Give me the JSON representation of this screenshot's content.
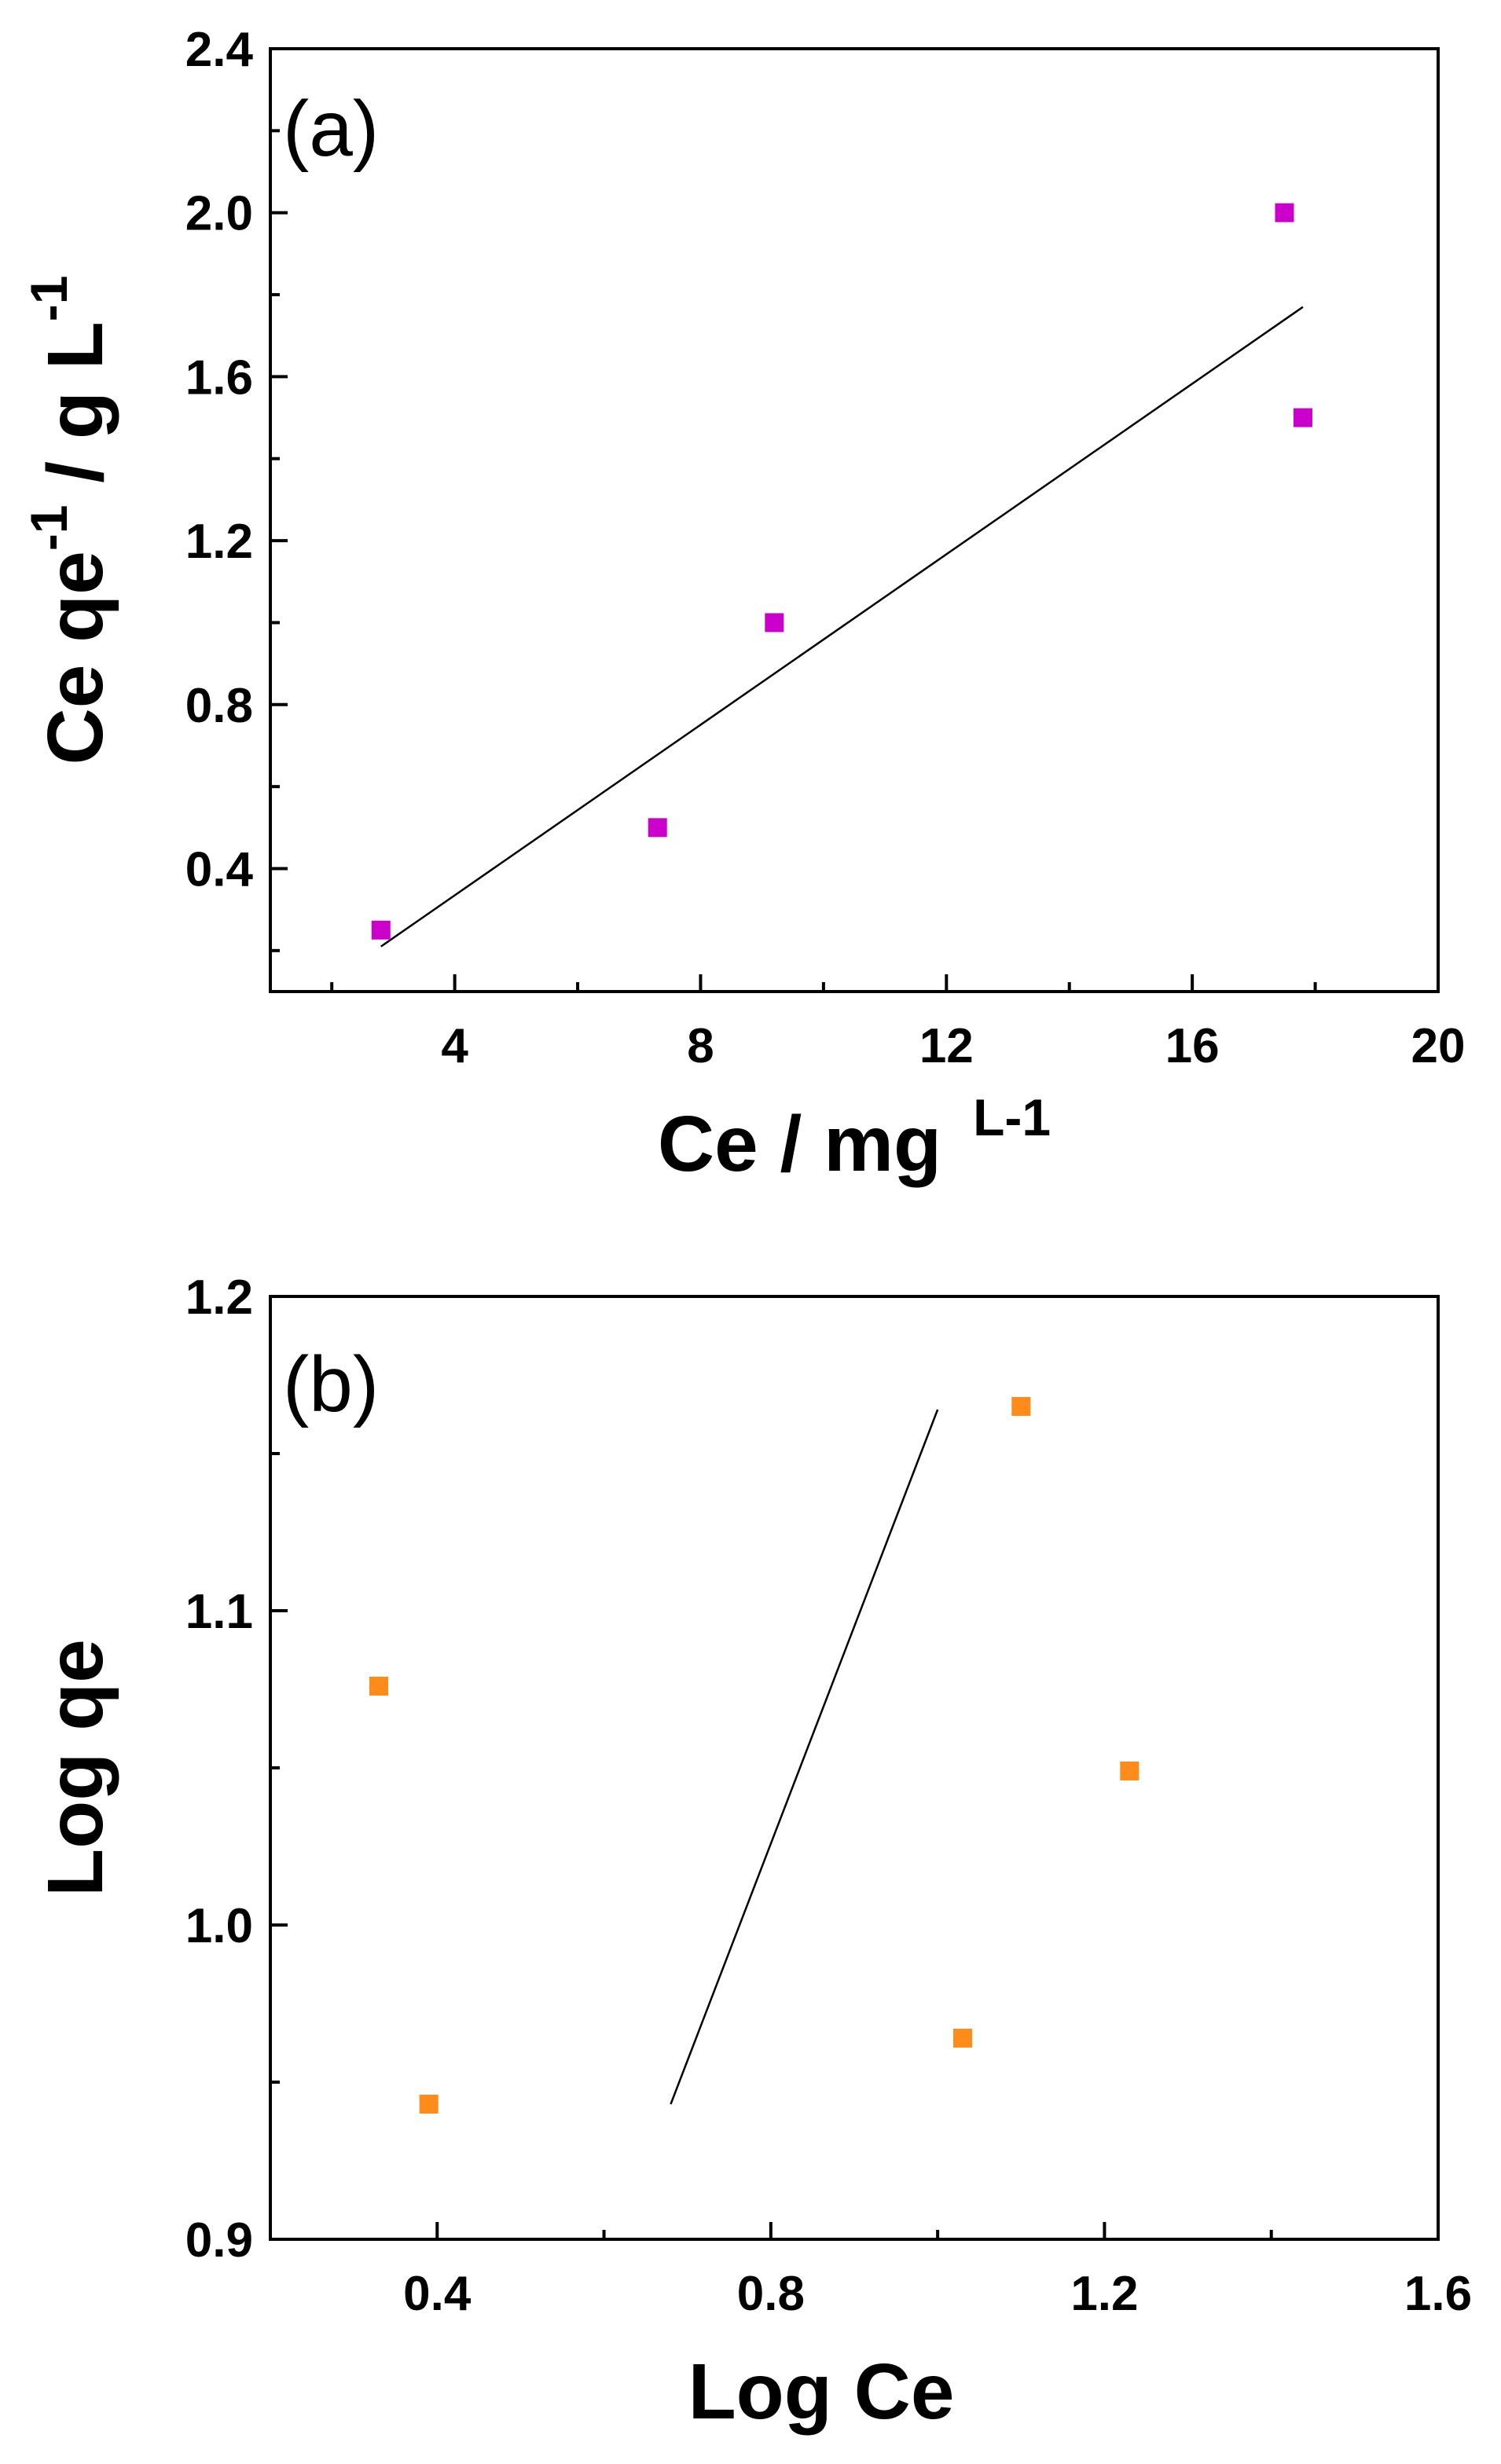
{
  "chart_data": [
    {
      "type": "scatter",
      "panel_label": "(a)",
      "xlabel": "Ce / mg",
      "xlabel_sup": "L-1",
      "ylabel_parts": [
        "Ce qe",
        "-1",
        " / g L",
        "-1"
      ],
      "xlim": [
        1,
        20
      ],
      "ylim": [
        0.1,
        2.4
      ],
      "xticks": [
        4,
        8,
        12,
        16,
        20
      ],
      "xtick_labels": [
        "4",
        "8",
        "12",
        "16",
        "20"
      ],
      "xminor": [
        2,
        6,
        10,
        14,
        18
      ],
      "yticks": [
        0.4,
        0.8,
        1.2,
        1.6,
        2.0,
        2.4
      ],
      "ytick_labels": [
        "0.4",
        "0.8",
        "1.2",
        "1.6",
        "2.0",
        "2.4"
      ],
      "yminor": [
        0.2,
        0.6,
        1.0,
        1.4,
        1.8,
        2.2
      ],
      "marker_color": "#CC00CC",
      "series": [
        {
          "name": "data",
          "x": [
            2.8,
            7.3,
            9.2,
            17.5,
            17.8
          ],
          "y": [
            0.25,
            0.5,
            1.0,
            2.0,
            1.5
          ]
        }
      ],
      "fit_line": {
        "x": [
          2.8,
          17.8
        ],
        "y": [
          0.21,
          1.77
        ]
      }
    },
    {
      "type": "scatter",
      "panel_label": "(b)",
      "xlabel": "Log Ce",
      "ylabel": "Log qe",
      "xlim": [
        0.2,
        1.6
      ],
      "ylim": [
        0.9,
        1.2
      ],
      "xticks": [
        0.4,
        0.8,
        1.2,
        1.6
      ],
      "xtick_labels": [
        "0.4",
        "0.8",
        "1.2",
        "1.6"
      ],
      "xminor": [
        0.2,
        0.6,
        1.0,
        1.4
      ],
      "yticks": [
        0.9,
        1.0,
        1.1,
        1.2
      ],
      "ytick_labels": [
        "0.9",
        "1.0",
        "1.1",
        "1.2"
      ],
      "yminor": [
        0.95,
        1.05,
        1.15
      ],
      "marker_color": "#FF8C1A",
      "series": [
        {
          "name": "data",
          "x": [
            0.33,
            0.39,
            1.03,
            1.1,
            1.23
          ],
          "y": [
            1.076,
            0.943,
            0.964,
            1.165,
            1.049
          ]
        }
      ],
      "fit_line": {
        "x": [
          0.68,
          1.0
        ],
        "y": [
          0.943,
          1.164
        ]
      }
    }
  ]
}
